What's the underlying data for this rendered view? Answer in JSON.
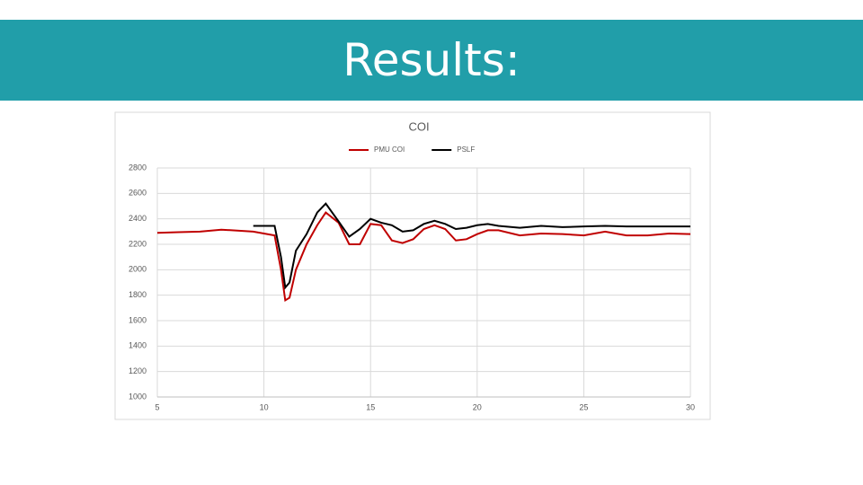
{
  "slide": {
    "title": "Results:"
  },
  "chart_data": {
    "type": "line",
    "title": "COI",
    "x": [
      5,
      6,
      7,
      8,
      9,
      9.5,
      10,
      10.5,
      10.8,
      11,
      11.2,
      11.5,
      12,
      12.5,
      12.9,
      13.5,
      14,
      14.5,
      15,
      15.5,
      16,
      16.5,
      17,
      17.5,
      18,
      18.5,
      19,
      19.5,
      20,
      20.5,
      21,
      22,
      23,
      24,
      25,
      26,
      27,
      28,
      29,
      30
    ],
    "series": [
      {
        "name": "PMU COI",
        "color": "#c00000",
        "values": [
          2290,
          2295,
          2300,
          2315,
          2305,
          2300,
          2285,
          2270,
          2000,
          1760,
          1780,
          2000,
          2200,
          2350,
          2450,
          2370,
          2200,
          2200,
          2360,
          2350,
          2230,
          2210,
          2240,
          2320,
          2350,
          2320,
          2230,
          2240,
          2280,
          2310,
          2310,
          2270,
          2285,
          2280,
          2270,
          2300,
          2270,
          2270,
          2285,
          2280
        ]
      },
      {
        "name": "PSLF",
        "color": "#000000",
        "values": [
          null,
          null,
          null,
          null,
          null,
          2345,
          2345,
          2345,
          2100,
          1860,
          1900,
          2150,
          2280,
          2450,
          2520,
          2380,
          2260,
          2320,
          2400,
          2370,
          2350,
          2300,
          2310,
          2360,
          2385,
          2360,
          2320,
          2330,
          2350,
          2360,
          2345,
          2330,
          2345,
          2335,
          2340,
          2345,
          2340,
          2340,
          2340,
          2340
        ]
      }
    ],
    "xlim": [
      5,
      30
    ],
    "xticks": [
      5,
      10,
      15,
      20,
      25,
      30
    ],
    "ylim": [
      1000,
      2800
    ],
    "yticks": [
      1000,
      1200,
      1400,
      1600,
      1800,
      2000,
      2200,
      2400,
      2600,
      2800
    ],
    "grid": true,
    "legend": "top"
  }
}
